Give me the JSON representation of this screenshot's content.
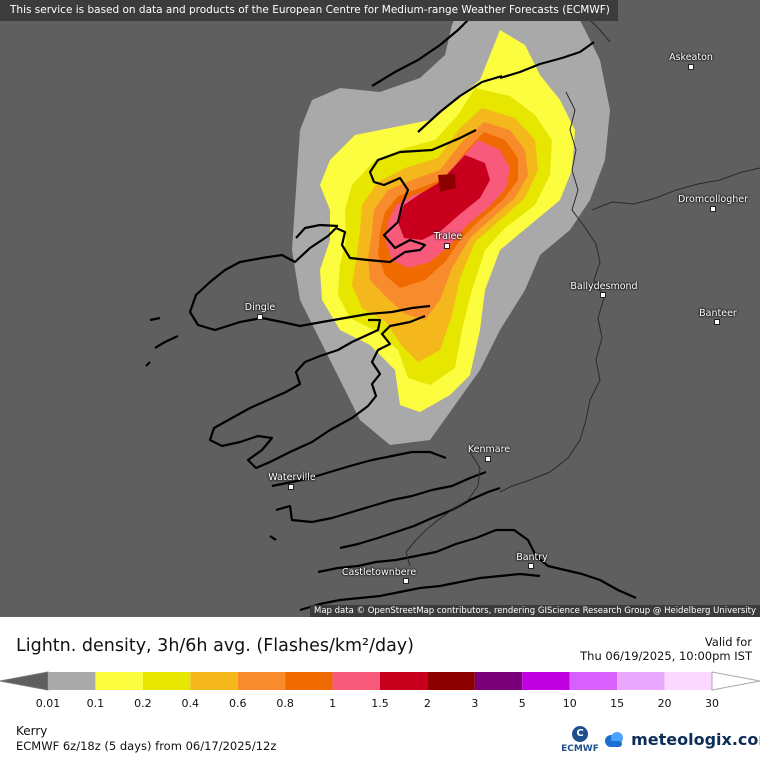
{
  "map": {
    "notice": "This service is based on data and products of the European Centre for Medium-range Weather Forecasts (ECMWF)",
    "attribution": "Map data © OpenStreetMap contributors, rendering GIScience Research Group @ Heidelberg University",
    "towns": [
      {
        "name": "Askeaton"
      },
      {
        "name": "Dromcollogher"
      },
      {
        "name": "Tralee"
      },
      {
        "name": "Ballydesmond"
      },
      {
        "name": "Dingle"
      },
      {
        "name": "Banteer"
      },
      {
        "name": "Kenmare"
      },
      {
        "name": "Waterville"
      },
      {
        "name": "Bantry"
      },
      {
        "name": "Castletownbere"
      }
    ],
    "density_peak_category": "2-3"
  },
  "legend": {
    "title": "Lightn. density, 3h/6h avg. (Flashes/km²/day)",
    "valid_label": "Valid for",
    "valid_time": "Thu 06/19/2025, 10:00pm IST",
    "ticks": [
      "0.01",
      "0.1",
      "0.2",
      "0.4",
      "0.6",
      "0.8",
      "1",
      "1.5",
      "2",
      "3",
      "5",
      "10",
      "15",
      "20",
      "30"
    ],
    "colors": [
      "#a9a9a9",
      "#fdfd3f",
      "#e6e600",
      "#f4b71c",
      "#f88c2c",
      "#ef6a00",
      "#f85a7c",
      "#c8001e",
      "#8c0000",
      "#7a007a",
      "#c000e0",
      "#d860ff",
      "#eaa8ff",
      "#fad8ff"
    ],
    "region": "Kerry",
    "model_run": "ECMWF 6z/18z (5 days) from  06/17/2025/12z",
    "ecmwf_logo_text": "ECMWF",
    "brand": "meteologix.com"
  }
}
